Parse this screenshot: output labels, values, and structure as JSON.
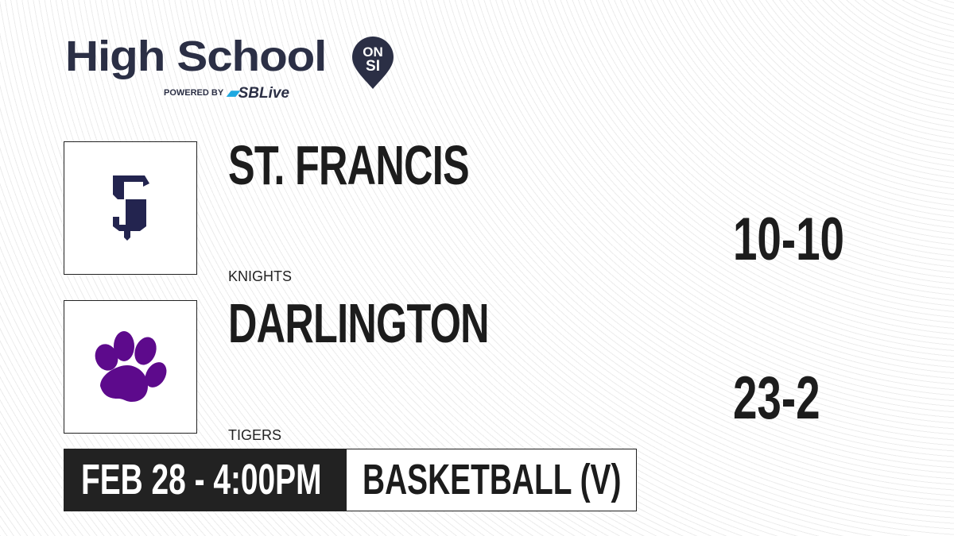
{
  "brand": {
    "title": "High School",
    "badge_top": "ON",
    "badge_bottom": "SI",
    "powered_by": "POWERED BY",
    "partner": "SBLive",
    "partner_color": "#1fa9e1",
    "brand_color": "#2b2f45"
  },
  "teams": [
    {
      "name": "ST. FRANCIS",
      "mascot": "KNIGHTS",
      "record": "10-10",
      "logo_icon": "sf-monogram-icon",
      "logo_color": "#23244f"
    },
    {
      "name": "DARLINGTON",
      "mascot": "TIGERS",
      "record": "23-2",
      "logo_icon": "paw-print-icon",
      "logo_color": "#5d0a8c"
    }
  ],
  "game": {
    "datetime": "FEB 28 - 4:00PM",
    "sport": "BASKETBALL (V)"
  }
}
